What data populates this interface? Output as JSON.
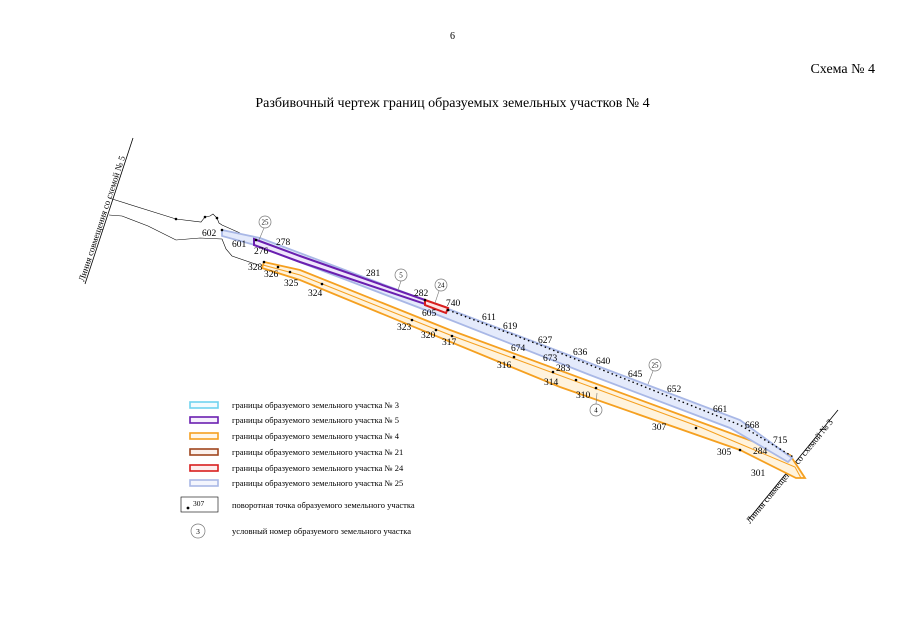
{
  "page_number": "6",
  "scheme_label": "Схема № 4",
  "title": "Разбивочный чертеж границ образуемых земельных участков № 4",
  "match_lines": {
    "left": "Линия совмещения со схемой № 5",
    "right": "Линия совмещения со схемой № 3"
  },
  "parcel_markers": [
    "25",
    "5",
    "24",
    "25",
    "4"
  ],
  "points": [
    "602",
    "601",
    "25",
    "278",
    "276",
    "328",
    "326",
    "325",
    "324",
    "281",
    "282",
    "740",
    "605",
    "611",
    "619",
    "323",
    "320",
    "317",
    "627",
    "674",
    "636",
    "673",
    "640",
    "316",
    "283",
    "314",
    "645",
    "652",
    "310",
    "661",
    "307",
    "668",
    "715",
    "305",
    "284",
    "301"
  ],
  "legend": {
    "items": [
      {
        "label": "границы образуемого земельного участка № 3",
        "color": "#6fd3ee"
      },
      {
        "label": "границы образуемого земельного участка № 5",
        "color": "#6a1fb0"
      },
      {
        "label": "границы образуемого земельного участка № 4",
        "color": "#f5a020"
      },
      {
        "label": "границы образуемого земельного участка № 21",
        "color": "#a0461e"
      },
      {
        "label": "границы образуемого земельного участка № 24",
        "color": "#d81e1e"
      },
      {
        "label": "границы образуемого земельного участка № 25",
        "color": "#a9b8e6"
      }
    ],
    "point_sample": "307",
    "point_label": "поворотная точка образуемого земельного участка",
    "marker_sample": "3",
    "marker_label": "условный номер образуемого земельного участка"
  }
}
